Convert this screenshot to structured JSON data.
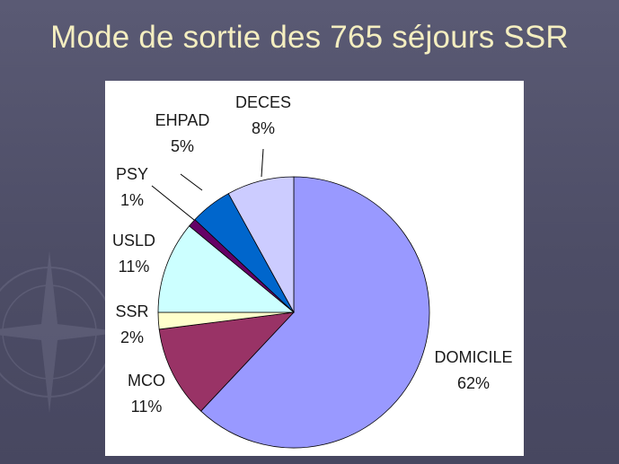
{
  "title": "Mode de sortie des 765 séjours SSR",
  "chart_data": {
    "type": "pie",
    "title": "Mode de sortie des 765 séjours SSR",
    "slices": [
      {
        "label": "DOMICILE",
        "value": 62,
        "value_label": "62%",
        "color": "#9999ff"
      },
      {
        "label": "MCO",
        "value": 11,
        "value_label": "11%",
        "color": "#993366"
      },
      {
        "label": "SSR",
        "value": 2,
        "value_label": "2%",
        "color": "#ffffcc"
      },
      {
        "label": "USLD",
        "value": 11,
        "value_label": "11%",
        "color": "#ccffff"
      },
      {
        "label": "PSY",
        "value": 1,
        "value_label": "1%",
        "color": "#660066"
      },
      {
        "label": "EHPAD",
        "value": 5,
        "value_label": "5%",
        "color": "#0066cc"
      },
      {
        "label": "DECES",
        "value": 8,
        "value_label": "8%",
        "color": "#ccccff"
      }
    ],
    "start": "top",
    "direction": "clockwise"
  },
  "colors": {
    "background": "#50506a",
    "title": "#f4eec0",
    "slice_border": "#000000"
  }
}
